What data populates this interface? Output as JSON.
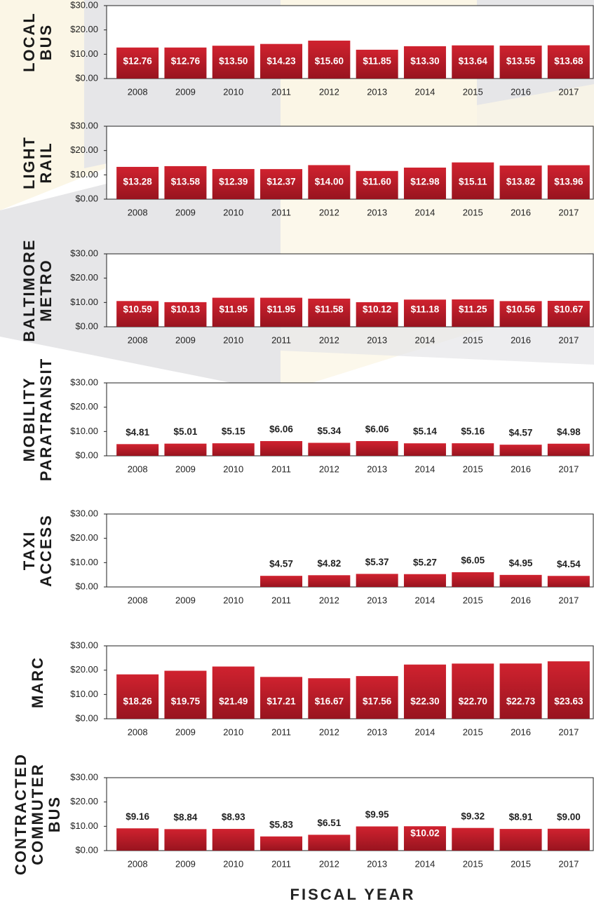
{
  "chart_data": [
    {
      "type": "bar",
      "title": [
        "LOCAL",
        "BUS"
      ],
      "color": "#c41f2c",
      "categories": [
        "2008",
        "2009",
        "2010",
        "2011",
        "2012",
        "2013",
        "2014",
        "2015",
        "2016",
        "2017"
      ],
      "values": [
        12.76,
        12.76,
        13.5,
        14.23,
        15.6,
        11.85,
        13.3,
        13.64,
        13.55,
        13.68
      ],
      "value_labels": [
        "$12.76",
        "$12.76",
        "$13.50",
        "$14.23",
        "$15.60",
        "$11.85",
        "$13.30",
        "$13.64",
        "$13.55",
        "$13.68"
      ],
      "ylim": [
        0,
        30
      ],
      "yticks": [
        {
          "value": 0,
          "label": "$0.00"
        },
        {
          "value": 10,
          "label": "$10.00"
        },
        {
          "value": 20,
          "label": "$20.00"
        },
        {
          "value": 30,
          "label": "$30.00"
        }
      ]
    },
    {
      "type": "bar",
      "title": [
        "LIGHT",
        "RAIL"
      ],
      "color": "#c41f2c",
      "categories": [
        "2008",
        "2009",
        "2010",
        "2011",
        "2012",
        "2013",
        "2014",
        "2015",
        "2016",
        "2017"
      ],
      "values": [
        13.28,
        13.58,
        12.39,
        12.37,
        14.0,
        11.6,
        12.98,
        15.11,
        13.82,
        13.96
      ],
      "value_labels": [
        "$13.28",
        "$13.58",
        "$12.39",
        "$12.37",
        "$14.00",
        "$11.60",
        "$12.98",
        "$15.11",
        "$13.82",
        "$13.96"
      ],
      "ylim": [
        0,
        30
      ],
      "yticks": [
        {
          "value": 0,
          "label": "$0.00"
        },
        {
          "value": 10,
          "label": "$10.00"
        },
        {
          "value": 20,
          "label": "$20.00"
        },
        {
          "value": 30,
          "label": "$30.00"
        }
      ]
    },
    {
      "type": "bar",
      "title": [
        "BALTIMORE",
        "METRO"
      ],
      "color": "#c41f2c",
      "categories": [
        "2008",
        "2009",
        "2010",
        "2011",
        "2012",
        "2013",
        "2014",
        "2015",
        "2016",
        "2017"
      ],
      "values": [
        10.59,
        10.13,
        11.95,
        11.95,
        11.58,
        10.12,
        11.18,
        11.25,
        10.56,
        10.67
      ],
      "value_labels": [
        "$10.59",
        "$10.13",
        "$11.95",
        "$11.95",
        "$11.58",
        "$10.12",
        "$11.18",
        "$11.25",
        "$10.56",
        "$10.67"
      ],
      "ylim": [
        0,
        30
      ],
      "yticks": [
        {
          "value": 0,
          "label": "$0.00"
        },
        {
          "value": 10,
          "label": "$10.00"
        },
        {
          "value": 20,
          "label": "$20.00"
        },
        {
          "value": 30,
          "label": "$30.00"
        }
      ]
    },
    {
      "type": "bar",
      "title": [
        "MOBILITY",
        "PARATRANSIT"
      ],
      "color": "#c41f2c",
      "categories": [
        "2008",
        "2009",
        "2010",
        "2011",
        "2012",
        "2013",
        "2014",
        "2015",
        "2016",
        "2017"
      ],
      "values": [
        4.81,
        5.01,
        5.15,
        6.06,
        5.34,
        6.06,
        5.14,
        5.16,
        4.57,
        4.98
      ],
      "value_labels": [
        "$4.81",
        "$5.01",
        "$5.15",
        "$6.06",
        "$5.34",
        "$6.06",
        "$5.14",
        "$5.16",
        "$4.57",
        "$4.98"
      ],
      "ylim": [
        0,
        30
      ],
      "yticks": [
        {
          "value": 0,
          "label": "$0.00"
        },
        {
          "value": 10,
          "label": "$10.00"
        },
        {
          "value": 20,
          "label": "$20.00"
        },
        {
          "value": 30,
          "label": "$30.00"
        }
      ]
    },
    {
      "type": "bar",
      "title": [
        "TAXI",
        "ACCESS"
      ],
      "color": "#c41f2c",
      "categories": [
        "2008",
        "2009",
        "2010",
        "2011",
        "2012",
        "2013",
        "2014",
        "2015",
        "2016",
        "2017"
      ],
      "values": [
        null,
        null,
        null,
        4.57,
        4.82,
        5.37,
        5.27,
        6.05,
        4.95,
        4.54
      ],
      "value_labels": [
        null,
        null,
        null,
        "$4.57",
        "$4.82",
        "$5.37",
        "$5.27",
        "$6.05",
        "$4.95",
        "$4.54"
      ],
      "ylim": [
        0,
        30
      ],
      "yticks": [
        {
          "value": 0,
          "label": "$0.00"
        },
        {
          "value": 10,
          "label": "$10.00"
        },
        {
          "value": 20,
          "label": "$20.00"
        },
        {
          "value": 30,
          "label": "$30.00"
        }
      ]
    },
    {
      "type": "bar",
      "title": [
        "MARC"
      ],
      "color": "#c41f2c",
      "categories": [
        "2008",
        "2009",
        "2010",
        "2011",
        "2012",
        "2013",
        "2014",
        "2015",
        "2016",
        "2017"
      ],
      "values": [
        18.26,
        19.75,
        21.49,
        17.21,
        16.67,
        17.56,
        22.3,
        22.7,
        22.73,
        23.63
      ],
      "value_labels": [
        "$18.26",
        "$19.75",
        "$21.49",
        "$17.21",
        "$16.67",
        "$17.56",
        "$22.30",
        "$22.70",
        "$22.73",
        "$23.63"
      ],
      "ylim": [
        0,
        30
      ],
      "yticks": [
        {
          "value": 0,
          "label": "$0.00"
        },
        {
          "value": 10,
          "label": "$10.00"
        },
        {
          "value": 20,
          "label": "$20.00"
        },
        {
          "value": 30,
          "label": "$30.00"
        }
      ]
    },
    {
      "type": "bar",
      "title": [
        "CONTRACTED",
        "COMMUTER",
        "BUS"
      ],
      "color": "#c41f2c",
      "categories": [
        "2008",
        "2009",
        "2010",
        "2011",
        "2012",
        "2013",
        "2014",
        "2015",
        "2015",
        "2017"
      ],
      "values": [
        9.16,
        8.84,
        8.93,
        5.83,
        6.51,
        9.95,
        10.02,
        9.32,
        8.91,
        9.0
      ],
      "value_labels": [
        "$9.16",
        "$8.84",
        "$8.93",
        "$5.83",
        "$6.51",
        "$9.95",
        "$10.02",
        "$9.32",
        "$8.91",
        "$9.00"
      ],
      "ylim": [
        0,
        30
      ],
      "yticks": [
        {
          "value": 0,
          "label": "$0.00"
        },
        {
          "value": 10,
          "label": "$10.00"
        },
        {
          "value": 20,
          "label": "$20.00"
        },
        {
          "value": 30,
          "label": "$30.00"
        }
      ],
      "xlabel": "FISCAL YEAR"
    }
  ]
}
